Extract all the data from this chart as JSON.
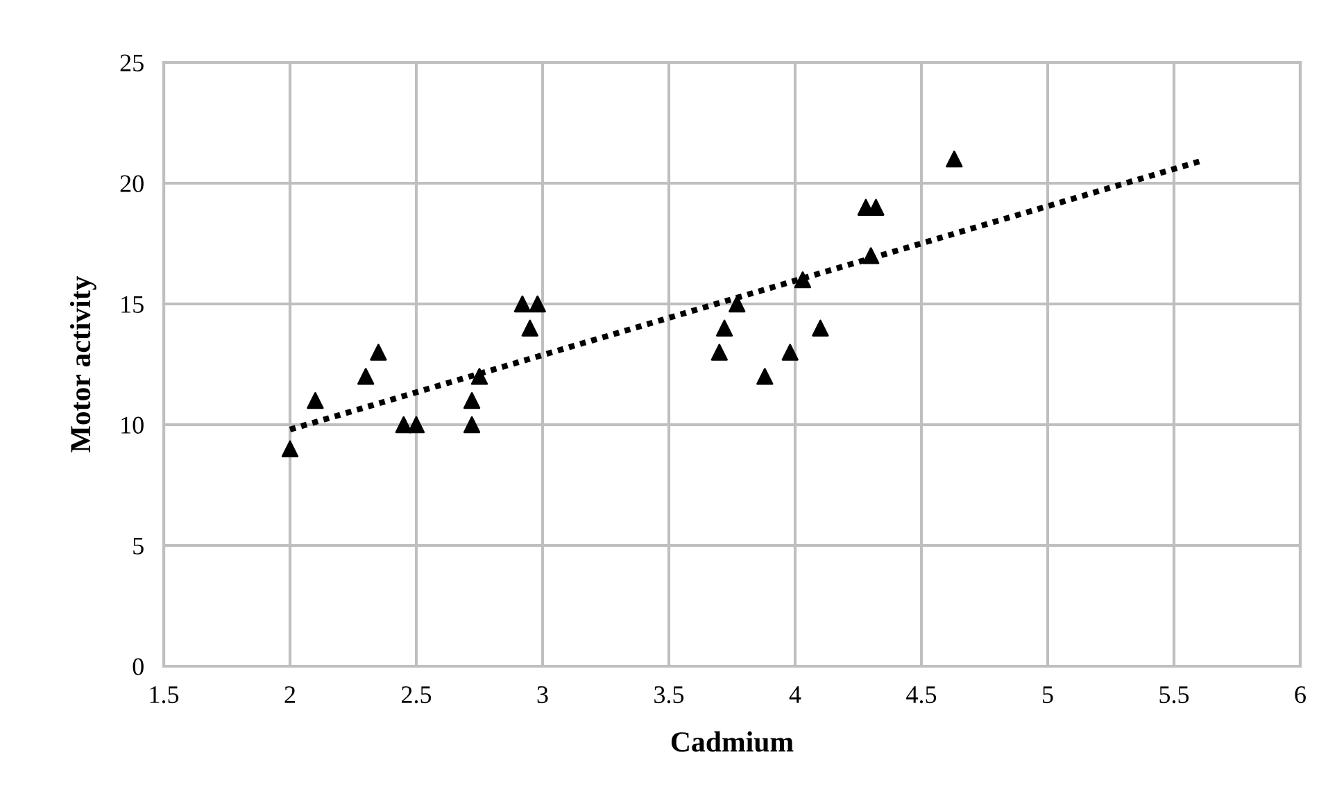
{
  "chart_data": {
    "type": "scatter",
    "xlabel": "Cadmium",
    "ylabel": "Motor activity",
    "xlim": [
      1.5,
      6
    ],
    "xticks": [
      1.5,
      2,
      2.5,
      3,
      3.5,
      4,
      4.5,
      5,
      5.5,
      6
    ],
    "ylim": [
      0,
      25
    ],
    "yticks": [
      0,
      5,
      10,
      15,
      20,
      25
    ],
    "grid": true,
    "marker": "triangle",
    "series": [
      {
        "color": "#000000",
        "x": [
          2.0,
          2.1,
          2.3,
          2.35,
          2.45,
          2.5,
          2.72,
          2.72,
          2.75,
          2.92,
          2.95,
          2.98,
          3.7,
          3.72,
          3.77,
          3.88,
          3.98,
          4.03,
          4.1,
          4.28,
          4.3,
          4.32,
          4.63
        ],
        "values": [
          9,
          11,
          12,
          13,
          10,
          10,
          10,
          11,
          12,
          15,
          14,
          15,
          13,
          14,
          15,
          12,
          13,
          16,
          14,
          19,
          17,
          19,
          21
        ]
      },
      {
        "type": "line",
        "color": "#000000",
        "line_style": "dotted",
        "marker": "none",
        "x": [
          2.0,
          5.6
        ],
        "values": [
          9.8,
          20.9
        ]
      }
    ]
  }
}
